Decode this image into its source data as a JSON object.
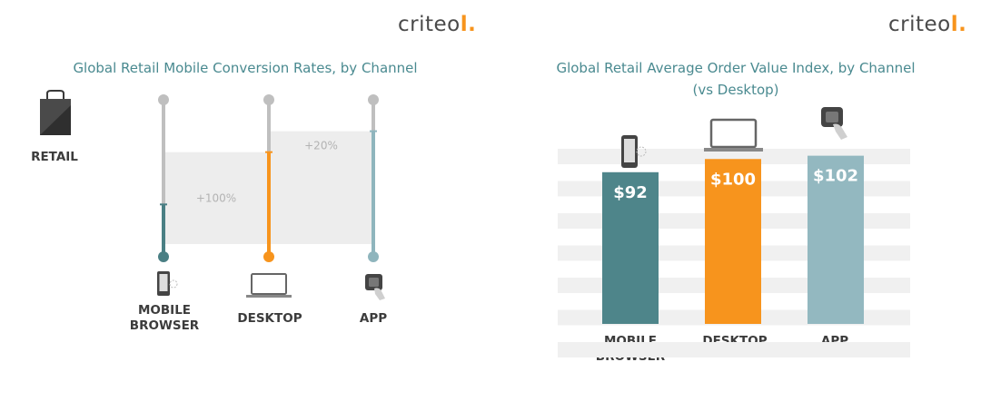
{
  "brand": {
    "name": "criteo",
    "mark": "l."
  },
  "chart_data": [
    {
      "type": "bar",
      "title": "Global Retail Mobile Conversion Rates, by Channel",
      "sector_label": "RETAIL",
      "categories": [
        "MOBILE BROWSER",
        "DESKTOP",
        "APP"
      ],
      "values": [
        1.0,
        2.0,
        2.4
      ],
      "annotations": [
        {
          "between": [
            "MOBILE BROWSER",
            "DESKTOP"
          ],
          "text": "+100%"
        },
        {
          "between": [
            "DESKTOP",
            "APP"
          ],
          "text": "+20%"
        }
      ],
      "ylim": [
        0,
        3
      ],
      "colors": [
        "#4a7f84",
        "#f7941d",
        "#8fb5bd"
      ],
      "icons": [
        "phone-icon",
        "laptop-icon",
        "app-touch-icon"
      ]
    },
    {
      "type": "bar",
      "title": "Global Retail Average Order Value Index, by Channel",
      "subtitle": "(vs Desktop)",
      "categories": [
        "MOBILE BROWSER",
        "DESKTOP",
        "APP"
      ],
      "values": [
        92,
        100,
        102
      ],
      "value_labels": [
        "$92",
        "$100",
        "$102"
      ],
      "ylim": [
        0,
        115
      ],
      "grid": "horizontal-stripes",
      "colors": [
        "#4e858a",
        "#f7941d",
        "#93b8c0"
      ],
      "icons": [
        "phone-icon",
        "laptop-icon",
        "app-touch-icon"
      ]
    }
  ],
  "labels": {
    "mobile_l1": "MOBILE",
    "mobile_l2": "BROWSER",
    "desktop": "DESKTOP",
    "app": "APP"
  }
}
